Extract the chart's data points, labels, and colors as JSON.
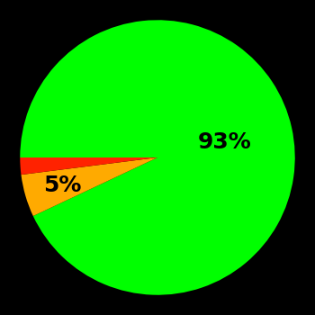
{
  "slices": [
    93,
    5,
    2
  ],
  "colors": [
    "#00ff00",
    "#ffaa00",
    "#ff2200"
  ],
  "labels": [
    "93%",
    "5%",
    ""
  ],
  "background_color": "#000000",
  "startangle": 180,
  "figsize": [
    3.5,
    3.5
  ],
  "dpi": 100,
  "label_fontsize": 18
}
